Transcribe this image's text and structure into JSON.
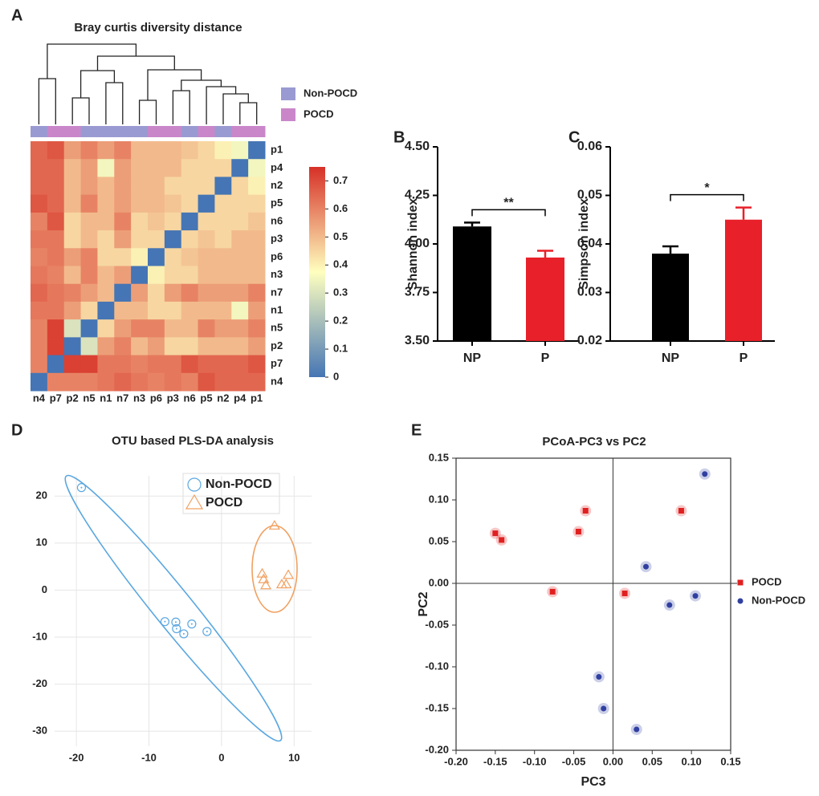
{
  "chart_data": [
    {
      "type": "heatmap",
      "panel_label": "A",
      "title": "Bray curtis diversity distance",
      "categories": [
        "n4",
        "p7",
        "p2",
        "n5",
        "n1",
        "n7",
        "n3",
        "p6",
        "p3",
        "n6",
        "p5",
        "n2",
        "p4",
        "p1"
      ],
      "rows": [
        "p1",
        "p4",
        "n2",
        "p5",
        "n6",
        "p3",
        "p6",
        "n3",
        "n7",
        "n1",
        "n5",
        "p2",
        "p7",
        "n4"
      ],
      "values": [
        [
          0.65,
          0.68,
          0.55,
          0.6,
          0.55,
          0.6,
          0.5,
          0.5,
          0.5,
          0.48,
          0.45,
          0.4,
          0.35,
          0
        ],
        [
          0.65,
          0.65,
          0.5,
          0.55,
          0.35,
          0.55,
          0.5,
          0.5,
          0.5,
          0.45,
          0.45,
          0.45,
          0,
          0.35
        ],
        [
          0.65,
          0.65,
          0.5,
          0.55,
          0.5,
          0.55,
          0.5,
          0.5,
          0.45,
          0.45,
          0.45,
          0,
          0.45,
          0.4
        ],
        [
          0.68,
          0.65,
          0.5,
          0.6,
          0.5,
          0.55,
          0.5,
          0.5,
          0.48,
          0.45,
          0,
          0.45,
          0.45,
          0.45
        ],
        [
          0.6,
          0.68,
          0.45,
          0.5,
          0.5,
          0.6,
          0.45,
          0.48,
          0.45,
          0,
          0.45,
          0.45,
          0.45,
          0.48
        ],
        [
          0.62,
          0.62,
          0.45,
          0.5,
          0.45,
          0.55,
          0.45,
          0.45,
          0,
          0.45,
          0.48,
          0.45,
          0.5,
          0.5
        ],
        [
          0.6,
          0.62,
          0.55,
          0.6,
          0.45,
          0.45,
          0.4,
          0,
          0.45,
          0.48,
          0.5,
          0.5,
          0.5,
          0.5
        ],
        [
          0.62,
          0.6,
          0.5,
          0.6,
          0.5,
          0.55,
          0,
          0.4,
          0.45,
          0.45,
          0.5,
          0.5,
          0.5,
          0.5
        ],
        [
          0.65,
          0.62,
          0.6,
          0.55,
          0.5,
          0,
          0.55,
          0.45,
          0.55,
          0.6,
          0.55,
          0.55,
          0.55,
          0.6
        ],
        [
          0.62,
          0.62,
          0.55,
          0.45,
          0,
          0.5,
          0.5,
          0.45,
          0.45,
          0.5,
          0.5,
          0.5,
          0.35,
          0.55
        ],
        [
          0.6,
          0.72,
          0.3,
          0,
          0.45,
          0.55,
          0.6,
          0.6,
          0.5,
          0.5,
          0.6,
          0.55,
          0.55,
          0.6
        ],
        [
          0.6,
          0.72,
          0,
          0.3,
          0.55,
          0.6,
          0.5,
          0.55,
          0.45,
          0.45,
          0.5,
          0.5,
          0.5,
          0.55
        ],
        [
          0.6,
          0,
          0.72,
          0.72,
          0.62,
          0.62,
          0.6,
          0.62,
          0.62,
          0.68,
          0.65,
          0.65,
          0.65,
          0.68
        ],
        [
          0,
          0.6,
          0.6,
          0.6,
          0.62,
          0.65,
          0.62,
          0.6,
          0.62,
          0.6,
          0.68,
          0.65,
          0.65,
          0.65
        ]
      ],
      "group_colors": [
        "#9a9ad2",
        "#c987c9",
        "#c987c9",
        "#9a9ad2",
        "#9a9ad2",
        "#9a9ad2",
        "#9a9ad2",
        "#c987c9",
        "#c987c9",
        "#9a9ad2",
        "#c987c9",
        "#9a9ad2",
        "#c987c9",
        "#c987c9"
      ],
      "legend": [
        {
          "name": "Non-POCD",
          "color": "#9a9ad2"
        },
        {
          "name": "POCD",
          "color": "#c987c9"
        }
      ],
      "colorscale": [
        "#4575b4",
        "#ffffbf",
        "#d73027"
      ],
      "zlim": [
        0,
        0.75
      ],
      "zticks": [
        0,
        0.1,
        0.2,
        0.3,
        0.4,
        0.5,
        0.6,
        0.7
      ]
    },
    {
      "type": "bar",
      "panel_label": "B",
      "ylabel": "Shannon index",
      "categories": [
        "NP",
        "P"
      ],
      "values": [
        4.09,
        3.93
      ],
      "errors": [
        0.02,
        0.035
      ],
      "colors": [
        "#000000",
        "#e8202a"
      ],
      "ylim": [
        3.5,
        4.5
      ],
      "yticks": [
        {
          "value": 3.5,
          "label": "3.50"
        },
        3.75,
        {
          "value": 4,
          "label": "4.00"
        },
        4.25,
        {
          "value": 4.5,
          "label": "4.50"
        }
      ],
      "annotation": "**"
    },
    {
      "type": "bar",
      "panel_label": "C",
      "ylabel": "Simpson index",
      "categories": [
        "NP",
        "P"
      ],
      "values": [
        0.038,
        0.045
      ],
      "errors": [
        0.0015,
        0.0025
      ],
      "colors": [
        "#000000",
        "#e8202a"
      ],
      "ylim": [
        0.02,
        0.06
      ],
      "yticks": [
        0.02,
        0.03,
        0.04,
        0.05,
        0.06
      ],
      "annotation": "*"
    },
    {
      "type": "scatter",
      "panel_label": "D",
      "title": "OTU based PLS-DA analysis",
      "xlim": [
        -23,
        12.4
      ],
      "ylim": [
        -33.2,
        24.3
      ],
      "xticks": [
        -20,
        -10,
        0,
        10
      ],
      "yticks": [
        -30,
        -20,
        -10,
        0,
        10,
        20
      ],
      "grid": true,
      "series": [
        {
          "name": "Non-POCD",
          "color": "#5aa7e0",
          "marker": "circle",
          "x": [
            -19.3,
            -7.8,
            -6.3,
            -6.2,
            -5.2,
            -4.1,
            -2.0
          ],
          "y": [
            21.8,
            -6.7,
            -6.8,
            -8.2,
            -9.3,
            -7.2,
            -8.8
          ]
        },
        {
          "name": "POCD",
          "color": "#f0a060",
          "marker": "triangle",
          "x": [
            7.3,
            5.6,
            5.8,
            6.1,
            8.3,
            8.9,
            9.2
          ],
          "y": [
            13.7,
            3.5,
            2.3,
            1.0,
            1.2,
            1.2,
            3.2
          ]
        }
      ]
    },
    {
      "type": "scatter",
      "panel_label": "E",
      "title": "PCoA-PC3 vs PC2",
      "xlabel": "PC3",
      "ylabel": "PC2",
      "xlim": [
        -0.2,
        0.15
      ],
      "ylim": [
        -0.2,
        0.15
      ],
      "xticks": [
        {
          "value": -0.2,
          "label": "-0.20"
        },
        -0.15,
        {
          "value": -0.1,
          "label": "-0.10"
        },
        -0.05,
        {
          "value": 0,
          "label": "0.00"
        },
        0.05,
        {
          "value": 0.1,
          "label": "0.10"
        },
        0.15
      ],
      "yticks": [
        {
          "value": -0.2,
          "label": "-0.20"
        },
        -0.15,
        {
          "value": -0.1,
          "label": "-0.10"
        },
        -0.05,
        {
          "value": 0,
          "label": "0.00"
        },
        0.05,
        {
          "value": 0.1,
          "label": "0.10"
        },
        0.15
      ],
      "zero_lines": true,
      "series": [
        {
          "name": "POCD",
          "color": "#e02020",
          "marker": "square",
          "x": [
            -0.15,
            -0.142,
            -0.044,
            -0.035,
            0.087,
            -0.077,
            0.015
          ],
          "y": [
            0.06,
            0.052,
            0.062,
            0.087,
            0.087,
            -0.01,
            -0.012
          ]
        },
        {
          "name": "Non-POCD",
          "color": "#3040a0",
          "marker": "circle",
          "x": [
            0.117,
            0.042,
            0.105,
            0.072,
            -0.018,
            -0.012,
            0.03
          ],
          "y": [
            0.131,
            0.02,
            -0.015,
            -0.026,
            -0.112,
            -0.15,
            -0.175
          ]
        }
      ]
    }
  ]
}
